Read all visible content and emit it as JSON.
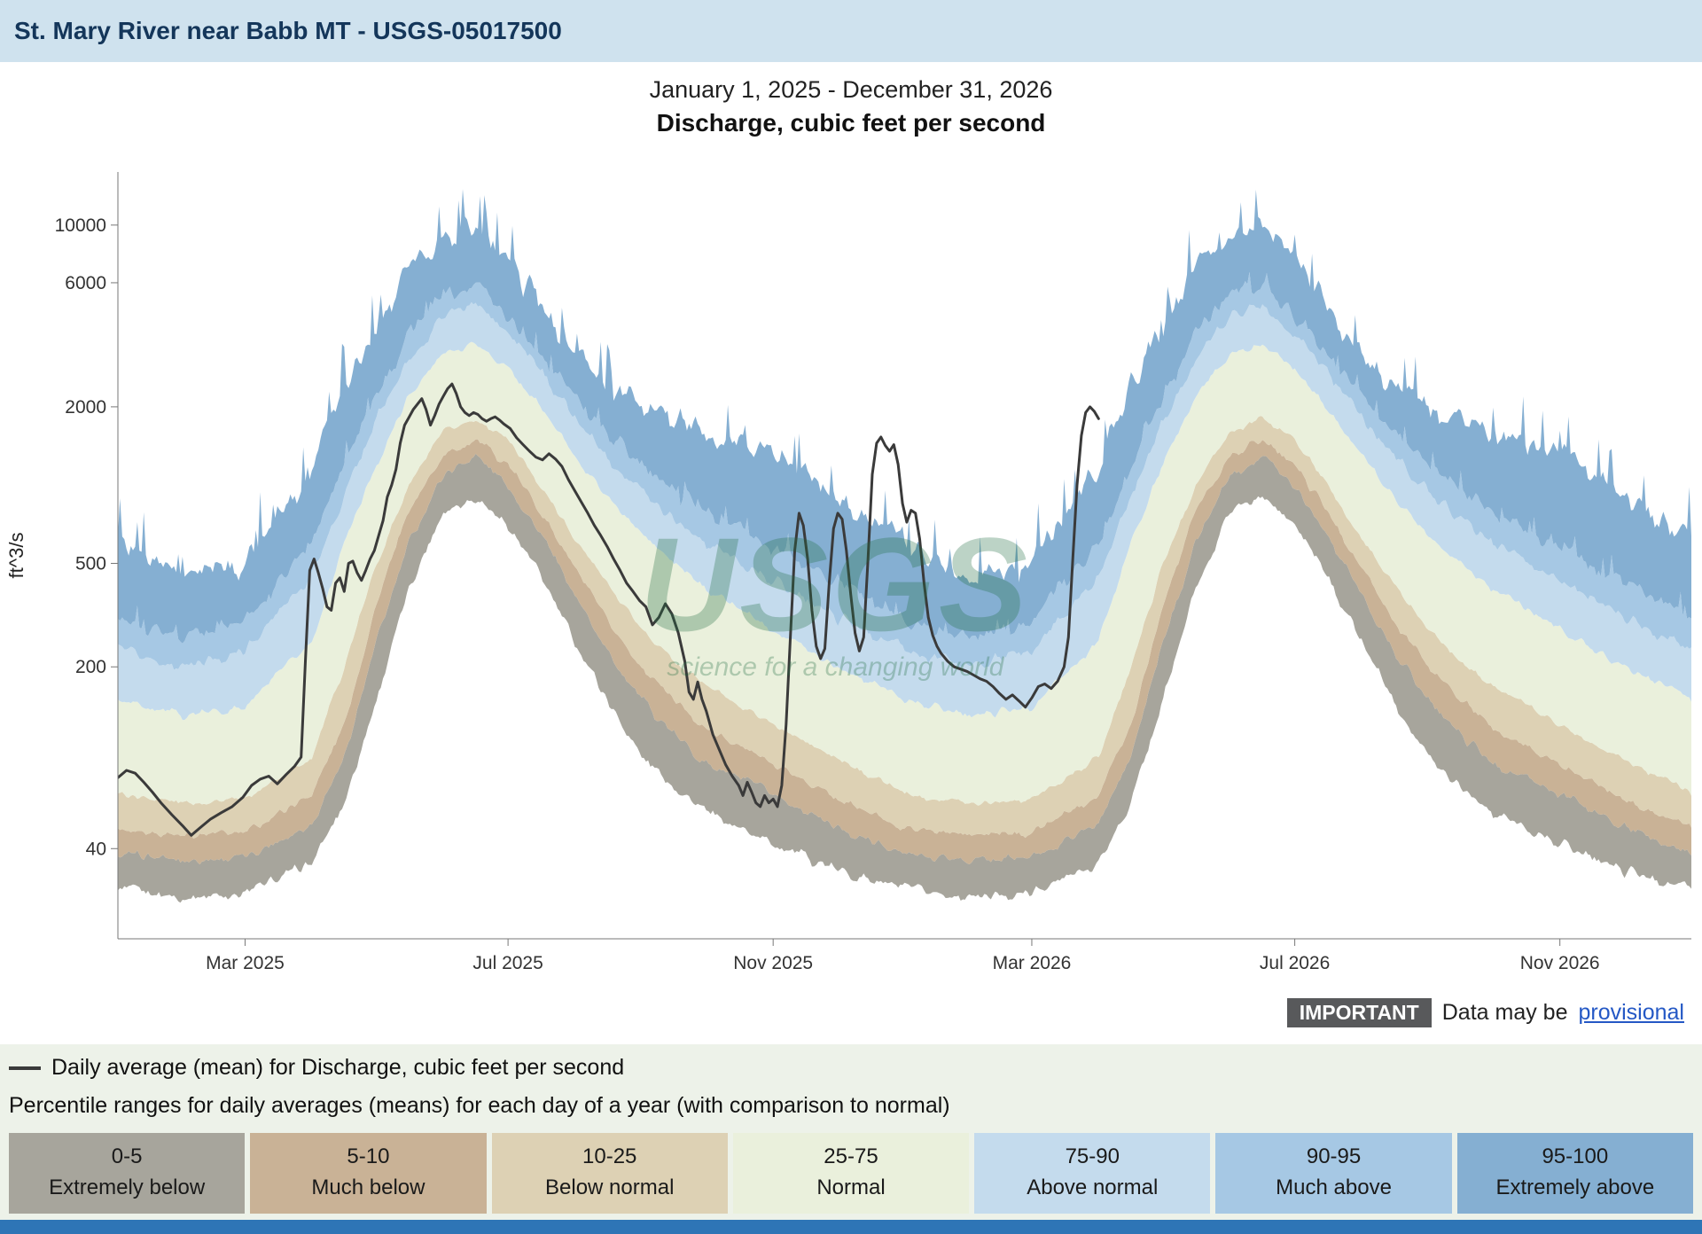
{
  "header": {
    "title": "St. Mary River near Babb MT - USGS-05017500"
  },
  "chart": {
    "watermark": {
      "line1": "USGS",
      "line2": "science for a changing world"
    }
  },
  "chart_data": {
    "type": "area",
    "title": "Discharge, cubic feet per second",
    "subtitle": "January 1, 2025 - December 31, 2026",
    "ylabel": "ft^3/s",
    "y_scale": "log",
    "y_ticks": [
      40,
      200,
      500,
      2000,
      6000,
      10000
    ],
    "ylim": [
      18,
      16000
    ],
    "days_total": 730,
    "x_ticks": [
      {
        "label": "Mar 2025",
        "day": 59
      },
      {
        "label": "Jul 2025",
        "day": 181
      },
      {
        "label": "Nov 2025",
        "day": 304
      },
      {
        "label": "Mar 2026",
        "day": 424
      },
      {
        "label": "Jul 2026",
        "day": 546
      },
      {
        "label": "Nov 2026",
        "day": 669
      }
    ],
    "percentile_bands": [
      {
        "range": "0-5",
        "label": "Extremely below",
        "color": "#a7a59c",
        "lower": "p0",
        "upper": "p5"
      },
      {
        "range": "5-10",
        "label": "Much below",
        "color": "#c9b296",
        "lower": "p5",
        "upper": "p10"
      },
      {
        "range": "10-25",
        "label": "Below normal",
        "color": "#ddd1b4",
        "lower": "p10",
        "upper": "p25"
      },
      {
        "range": "25-75",
        "label": "Normal",
        "color": "#eaf0dc",
        "lower": "p25",
        "upper": "p75"
      },
      {
        "range": "75-90",
        "label": "Above normal",
        "color": "#c4dbed",
        "lower": "p75",
        "upper": "p90"
      },
      {
        "range": "90-95",
        "label": "Much above",
        "color": "#a6c8e4",
        "lower": "p90",
        "upper": "p95"
      },
      {
        "range": "95-100",
        "label": "Extremely above",
        "color": "#85afd2",
        "lower": "p95",
        "upper": "p100"
      }
    ],
    "percentile_climatology": {
      "note": "approximate percentile values (cfs) by day of year; pattern repeats for both years",
      "days": [
        0,
        31,
        59,
        90,
        105,
        120,
        135,
        151,
        166,
        181,
        196,
        212,
        227,
        243,
        258,
        273,
        304,
        334,
        365
      ],
      "p0": [
        28,
        26,
        27,
        35,
        60,
        150,
        400,
        800,
        900,
        700,
        450,
        250,
        150,
        90,
        70,
        55,
        42,
        33,
        28
      ],
      "p5": [
        38,
        36,
        37,
        50,
        90,
        250,
        600,
        1100,
        1300,
        1000,
        650,
        380,
        230,
        150,
        110,
        85,
        65,
        48,
        38
      ],
      "p10": [
        48,
        45,
        46,
        65,
        120,
        350,
        800,
        1300,
        1500,
        1200,
        800,
        480,
        300,
        200,
        150,
        115,
        85,
        62,
        48
      ],
      "p25": [
        65,
        60,
        62,
        90,
        200,
        500,
        1000,
        1600,
        1800,
        1500,
        1000,
        620,
        420,
        280,
        210,
        170,
        120,
        88,
        66
      ],
      "p75": [
        150,
        130,
        140,
        250,
        600,
        1200,
        2200,
        3200,
        3500,
        2800,
        2000,
        1300,
        900,
        650,
        500,
        400,
        280,
        200,
        152
      ],
      "p90": [
        230,
        200,
        230,
        450,
        900,
        1800,
        3000,
        4500,
        5000,
        3800,
        2800,
        1800,
        1300,
        950,
        750,
        600,
        430,
        310,
        235
      ],
      "p95": [
        300,
        260,
        300,
        600,
        1200,
        2200,
        3800,
        5500,
        6000,
        4500,
        3200,
        2200,
        1600,
        1200,
        950,
        800,
        570,
        420,
        305
      ],
      "p100": [
        600,
        450,
        500,
        1200,
        2500,
        4000,
        7000,
        9000,
        10000,
        7500,
        5000,
        3200,
        2400,
        2000,
        1800,
        1500,
        1400,
        900,
        620
      ]
    },
    "daily_mean": {
      "name": "Daily average (mean) for Discharge, cubic feet per second",
      "color": "#3a3a3a",
      "points": [
        [
          0,
          75
        ],
        [
          4,
          80
        ],
        [
          8,
          78
        ],
        [
          12,
          72
        ],
        [
          16,
          66
        ],
        [
          20,
          60
        ],
        [
          25,
          54
        ],
        [
          30,
          49
        ],
        [
          34,
          45
        ],
        [
          38,
          48
        ],
        [
          43,
          52
        ],
        [
          48,
          55
        ],
        [
          53,
          58
        ],
        [
          58,
          63
        ],
        [
          62,
          70
        ],
        [
          66,
          74
        ],
        [
          70,
          76
        ],
        [
          74,
          71
        ],
        [
          78,
          77
        ],
        [
          82,
          83
        ],
        [
          85,
          90
        ],
        [
          87,
          210
        ],
        [
          89,
          470
        ],
        [
          91,
          520
        ],
        [
          93,
          460
        ],
        [
          95,
          400
        ],
        [
          97,
          340
        ],
        [
          99,
          330
        ],
        [
          101,
          420
        ],
        [
          103,
          440
        ],
        [
          105,
          390
        ],
        [
          107,
          500
        ],
        [
          109,
          510
        ],
        [
          111,
          460
        ],
        [
          113,
          430
        ],
        [
          115,
          470
        ],
        [
          117,
          520
        ],
        [
          119,
          560
        ],
        [
          121,
          640
        ],
        [
          123,
          730
        ],
        [
          125,
          900
        ],
        [
          127,
          1000
        ],
        [
          129,
          1150
        ],
        [
          131,
          1450
        ],
        [
          133,
          1700
        ],
        [
          135,
          1820
        ],
        [
          137,
          1950
        ],
        [
          139,
          2050
        ],
        [
          141,
          2150
        ],
        [
          143,
          1950
        ],
        [
          145,
          1700
        ],
        [
          147,
          1850
        ],
        [
          149,
          2050
        ],
        [
          151,
          2200
        ],
        [
          153,
          2350
        ],
        [
          155,
          2450
        ],
        [
          157,
          2250
        ],
        [
          159,
          2000
        ],
        [
          161,
          1900
        ],
        [
          163,
          1850
        ],
        [
          165,
          1900
        ],
        [
          167,
          1870
        ],
        [
          169,
          1800
        ],
        [
          171,
          1760
        ],
        [
          173,
          1800
        ],
        [
          175,
          1830
        ],
        [
          177,
          1780
        ],
        [
          179,
          1720
        ],
        [
          182,
          1650
        ],
        [
          185,
          1520
        ],
        [
          188,
          1430
        ],
        [
          191,
          1350
        ],
        [
          194,
          1280
        ],
        [
          197,
          1250
        ],
        [
          200,
          1320
        ],
        [
          203,
          1260
        ],
        [
          206,
          1180
        ],
        [
          209,
          1050
        ],
        [
          212,
          950
        ],
        [
          215,
          860
        ],
        [
          218,
          780
        ],
        [
          221,
          700
        ],
        [
          224,
          640
        ],
        [
          227,
          580
        ],
        [
          230,
          520
        ],
        [
          233,
          470
        ],
        [
          236,
          420
        ],
        [
          239,
          390
        ],
        [
          242,
          360
        ],
        [
          245,
          340
        ],
        [
          248,
          290
        ],
        [
          251,
          310
        ],
        [
          254,
          350
        ],
        [
          257,
          320
        ],
        [
          260,
          270
        ],
        [
          263,
          210
        ],
        [
          265,
          160
        ],
        [
          267,
          150
        ],
        [
          269,
          175
        ],
        [
          271,
          150
        ],
        [
          273,
          135
        ],
        [
          276,
          110
        ],
        [
          279,
          96
        ],
        [
          282,
          84
        ],
        [
          285,
          76
        ],
        [
          288,
          70
        ],
        [
          290,
          64
        ],
        [
          292,
          72
        ],
        [
          294,
          66
        ],
        [
          296,
          60
        ],
        [
          298,
          58
        ],
        [
          300,
          64
        ],
        [
          302,
          60
        ],
        [
          304,
          62
        ],
        [
          306,
          58
        ],
        [
          308,
          70
        ],
        [
          310,
          120
        ],
        [
          312,
          260
        ],
        [
          314,
          560
        ],
        [
          316,
          780
        ],
        [
          318,
          700
        ],
        [
          320,
          520
        ],
        [
          322,
          330
        ],
        [
          324,
          240
        ],
        [
          326,
          215
        ],
        [
          328,
          235
        ],
        [
          330,
          420
        ],
        [
          332,
          680
        ],
        [
          334,
          780
        ],
        [
          336,
          740
        ],
        [
          338,
          560
        ],
        [
          340,
          380
        ],
        [
          342,
          270
        ],
        [
          344,
          230
        ],
        [
          346,
          260
        ],
        [
          348,
          520
        ],
        [
          350,
          1100
        ],
        [
          352,
          1450
        ],
        [
          354,
          1530
        ],
        [
          356,
          1420
        ],
        [
          358,
          1350
        ],
        [
          360,
          1430
        ],
        [
          362,
          1200
        ],
        [
          364,
          850
        ],
        [
          366,
          720
        ],
        [
          368,
          800
        ],
        [
          370,
          780
        ],
        [
          372,
          620
        ],
        [
          374,
          420
        ],
        [
          376,
          310
        ],
        [
          378,
          265
        ],
        [
          380,
          240
        ],
        [
          382,
          225
        ],
        [
          385,
          210
        ],
        [
          388,
          200
        ],
        [
          391,
          196
        ],
        [
          394,
          192
        ],
        [
          397,
          186
        ],
        [
          400,
          180
        ],
        [
          403,
          176
        ],
        [
          406,
          168
        ],
        [
          409,
          158
        ],
        [
          412,
          150
        ],
        [
          415,
          156
        ],
        [
          418,
          148
        ],
        [
          421,
          140
        ],
        [
          424,
          152
        ],
        [
          427,
          168
        ],
        [
          430,
          172
        ],
        [
          433,
          165
        ],
        [
          436,
          176
        ],
        [
          439,
          200
        ],
        [
          441,
          260
        ],
        [
          443,
          520
        ],
        [
          445,
          1000
        ],
        [
          447,
          1550
        ],
        [
          449,
          1900
        ],
        [
          451,
          2000
        ],
        [
          453,
          1920
        ],
        [
          455,
          1800
        ]
      ]
    }
  },
  "notice": {
    "badge": "IMPORTANT",
    "text": "Data may be",
    "link_text": "provisional"
  },
  "legend": {
    "mean_label": "Daily average (mean) for Discharge, cubic feet per second",
    "percentile_label": "Percentile ranges for daily averages (means) for each day of a year (with comparison to normal)"
  },
  "colors": {
    "header_bg": "#cfe2ee",
    "header_text": "#14365a",
    "legend_bg": "#edf2e9",
    "footer_bar": "#2e75b6",
    "mean_line": "#3a3a3a",
    "link": "#2458c5",
    "badge_bg": "#58595b"
  }
}
